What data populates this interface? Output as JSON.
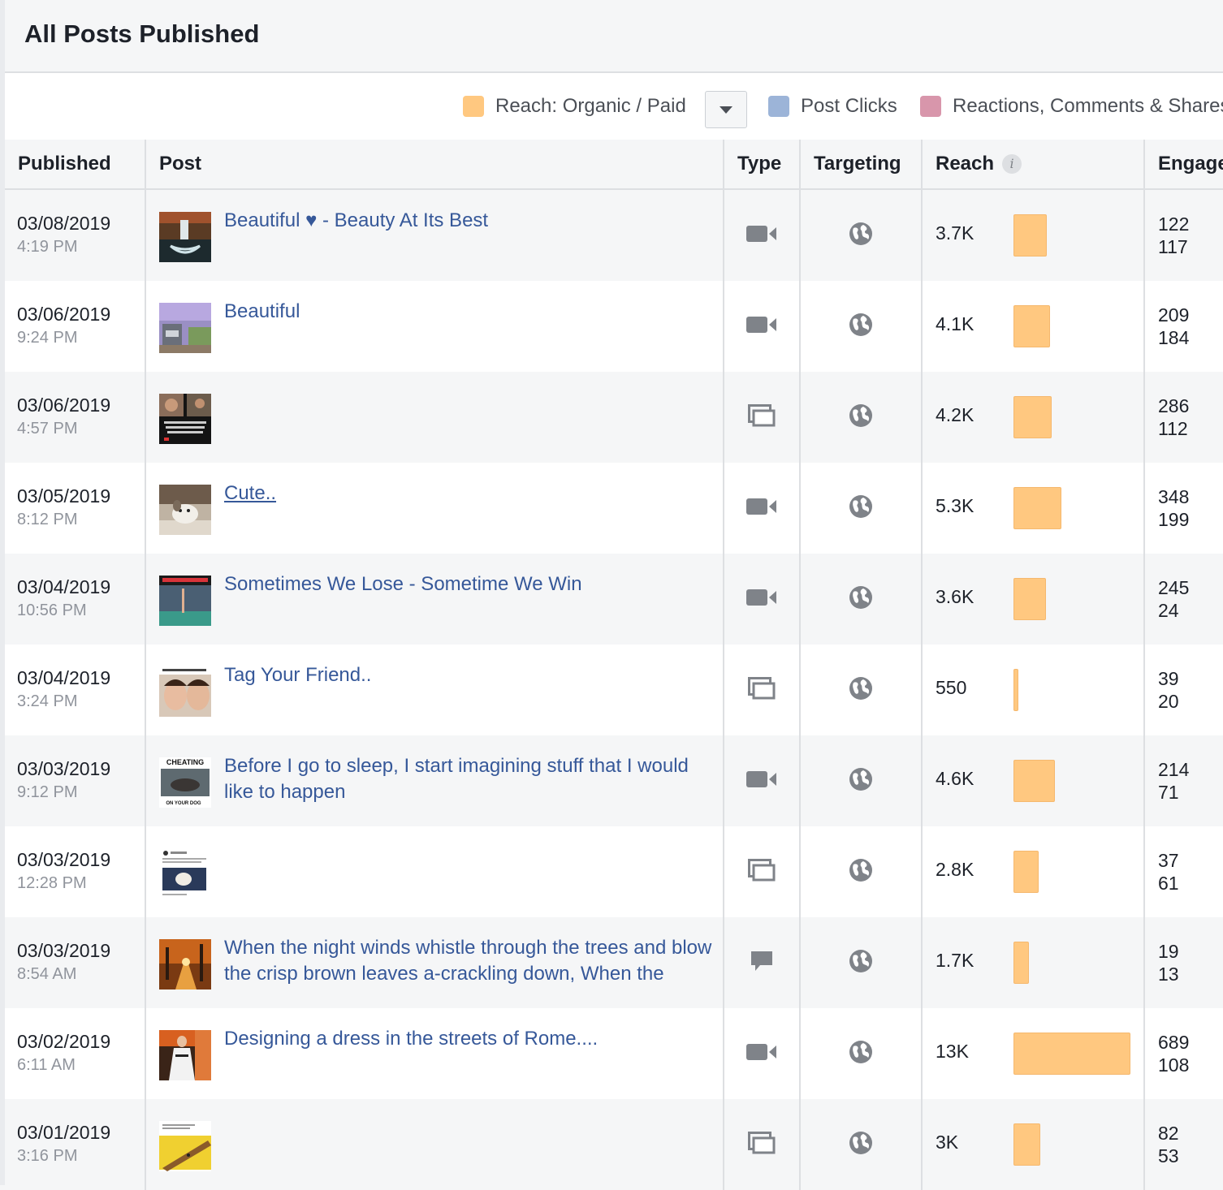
{
  "header": {
    "title": "All Posts Published"
  },
  "legend": {
    "reach_label": "Reach: Organic / Paid",
    "reach_color": "#ffc880",
    "clicks_label": "Post Clicks",
    "clicks_color": "#9cb4d8",
    "reactions_label": "Reactions, Comments & Shares",
    "reactions_color": "#d896ab"
  },
  "columns": {
    "published": "Published",
    "post": "Post",
    "type": "Type",
    "targeting": "Targeting",
    "reach": "Reach",
    "engagement": "Engagement"
  },
  "rows": [
    {
      "date": "03/08/2019",
      "time": "4:19 PM",
      "title": "Beautiful ♥ - Beauty At Its Best",
      "type": "video-icon",
      "reach": "3.7K",
      "reach_value": 3700,
      "eng1": "122",
      "eng2": "117",
      "thumb": "waterfall"
    },
    {
      "date": "03/06/2019",
      "time": "9:24 PM",
      "title": "Beautiful",
      "type": "video-icon",
      "reach": "4.1K",
      "reach_value": 4100,
      "eng1": "209",
      "eng2": "184",
      "thumb": "wisteria"
    },
    {
      "date": "03/06/2019",
      "time": "4:57 PM",
      "title": "",
      "type": "photo-icon",
      "reach": "4.2K",
      "reach_value": 4200,
      "eng1": "286",
      "eng2": "112",
      "thumb": "quote"
    },
    {
      "date": "03/05/2019",
      "time": "8:12 PM",
      "title": "Cute..",
      "type": "video-icon",
      "reach": "5.3K",
      "reach_value": 5300,
      "eng1": "348",
      "eng2": "199",
      "thumb": "puppy"
    },
    {
      "date": "03/04/2019",
      "time": "10:56 PM",
      "title": "Sometimes We Lose - Sometime We Win",
      "type": "video-icon",
      "reach": "3.6K",
      "reach_value": 3600,
      "eng1": "245",
      "eng2": "24",
      "thumb": "pool"
    },
    {
      "date": "03/04/2019",
      "time": "3:24 PM",
      "title": "Tag Your Friend..",
      "type": "photo-icon",
      "reach": "550",
      "reach_value": 550,
      "eng1": "39",
      "eng2": "20",
      "thumb": "faces"
    },
    {
      "date": "03/03/2019",
      "time": "9:12 PM",
      "title": "Before I go to sleep, I start imagining stuff that I would like to happen",
      "type": "video-icon",
      "reach": "4.6K",
      "reach_value": 4600,
      "eng1": "214",
      "eng2": "71",
      "thumb": "cheating"
    },
    {
      "date": "03/03/2019",
      "time": "12:28 PM",
      "title": "",
      "type": "photo-icon",
      "reach": "2.8K",
      "reach_value": 2800,
      "eng1": "37",
      "eng2": "61",
      "thumb": "tweet"
    },
    {
      "date": "03/03/2019",
      "time": "8:54 AM",
      "title": "When the night winds whistle through the trees and blow the crisp brown leaves a-crackling down, When the",
      "type": "status-icon",
      "reach": "1.7K",
      "reach_value": 1700,
      "eng1": "19",
      "eng2": "13",
      "thumb": "autumn"
    },
    {
      "date": "03/02/2019",
      "time": "6:11 AM",
      "title": "Designing a dress in the streets of Rome....",
      "type": "video-icon",
      "reach": "13K",
      "reach_value": 13000,
      "eng1": "689",
      "eng2": "108",
      "thumb": "dress"
    },
    {
      "date": "03/01/2019",
      "time": "3:16 PM",
      "title": "",
      "type": "photo-icon",
      "reach": "3K",
      "reach_value": 3000,
      "eng1": "82",
      "eng2": "53",
      "thumb": "craft"
    }
  ]
}
